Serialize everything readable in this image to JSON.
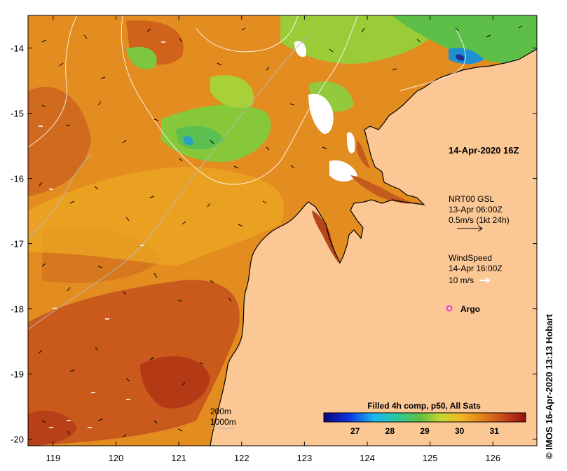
{
  "x_ticks": [
    {
      "label": "119",
      "value": 119
    },
    {
      "label": "120",
      "value": 120
    },
    {
      "label": "121",
      "value": 121
    },
    {
      "label": "122",
      "value": 122
    },
    {
      "label": "123",
      "value": 123
    },
    {
      "label": "124",
      "value": 124
    },
    {
      "label": "125",
      "value": 125
    },
    {
      "label": "126",
      "value": 126
    }
  ],
  "y_ticks": [
    {
      "label": "-14",
      "value": -14
    },
    {
      "label": "-15",
      "value": -15
    },
    {
      "label": "-16",
      "value": -16
    },
    {
      "label": "-17",
      "value": -17
    },
    {
      "label": "-18",
      "value": -18
    },
    {
      "label": "-19",
      "value": -19
    },
    {
      "label": "-20",
      "value": -20
    }
  ],
  "map_extent": {
    "lon_min": 118.6,
    "lon_max": 126.7,
    "lat_min": -20.1,
    "lat_max": -13.5
  },
  "date_label": "14-Apr-2020 16Z",
  "current_legend": {
    "line1": "NRT00 GSL",
    "line2": "13-Apr 06:00Z",
    "line3": "0.5m/s (1kt 24h)"
  },
  "wind_legend": {
    "line1": "WindSpeed",
    "line2": "14-Apr 16:00Z",
    "line3": "10 m/s"
  },
  "argo_label": "Argo",
  "bathy_legend": {
    "line1": "200m",
    "line2": "1000m"
  },
  "colorbar": {
    "title": "Filled 4h comp, p50, All Sats",
    "ticks": [
      "27",
      "28",
      "29",
      "30",
      "31"
    ],
    "min": 26.1,
    "max": 31.9
  },
  "credit": "© IMOS 16-Apr-2020 13:13 Hobart",
  "colors": {
    "land": "#FBC795",
    "sst_warm": "#C2451A",
    "sst_mid": "#E08A1E",
    "sst_cool": "#74C83A",
    "no_data": "#FFFFFF",
    "argo": "#E040E0"
  }
}
